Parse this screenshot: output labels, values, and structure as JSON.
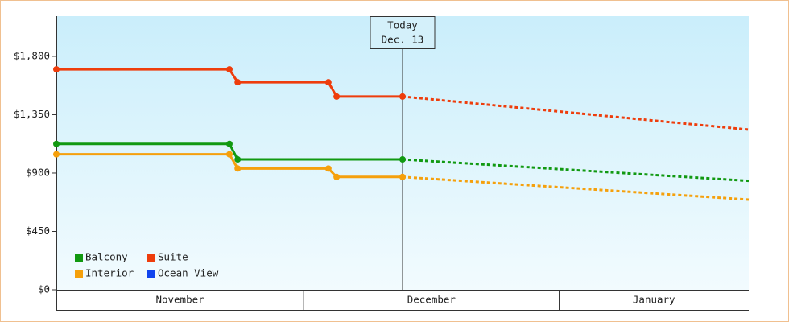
{
  "chart_data": {
    "type": "line",
    "ylim": [
      0,
      2110
    ],
    "yticks": [
      {
        "value": 0,
        "label": "$0"
      },
      {
        "value": 450,
        "label": "$450"
      },
      {
        "value": 900,
        "label": "$900"
      },
      {
        "value": 1350,
        "label": "$1,350"
      },
      {
        "value": 1800,
        "label": "$1,800"
      }
    ],
    "xlim": [
      0,
      84
    ],
    "months": [
      {
        "label": "November",
        "start": 0,
        "end": 30
      },
      {
        "label": "December",
        "start": 30,
        "end": 61
      },
      {
        "label": "January",
        "start": 61,
        "end": 84
      }
    ],
    "today": {
      "x": 42,
      "label": "Today",
      "date": "Dec. 13"
    },
    "series": [
      {
        "name": "Balcony",
        "color": "#119911",
        "x": [
          0,
          21,
          22,
          42
        ],
        "values": [
          1125,
          1125,
          1005,
          1005
        ],
        "forecast": {
          "x": [
            42,
            84
          ],
          "values": [
            1005,
            840
          ]
        }
      },
      {
        "name": "Suite",
        "color": "#ee3d0c",
        "x": [
          0,
          21,
          22,
          33,
          34,
          42
        ],
        "values": [
          1700,
          1700,
          1600,
          1600,
          1490,
          1490
        ],
        "forecast": {
          "x": [
            42,
            84
          ],
          "values": [
            1490,
            1235
          ]
        }
      },
      {
        "name": "Interior",
        "color": "#f5a00c",
        "x": [
          0,
          21,
          22,
          33,
          34,
          42
        ],
        "values": [
          1045,
          1045,
          935,
          935,
          870,
          870
        ],
        "forecast": {
          "x": [
            42,
            84
          ],
          "values": [
            870,
            695
          ]
        }
      },
      {
        "name": "Ocean View",
        "color": "#1144ee",
        "x": [],
        "values": [],
        "forecast": {
          "x": [],
          "values": []
        }
      }
    ]
  }
}
